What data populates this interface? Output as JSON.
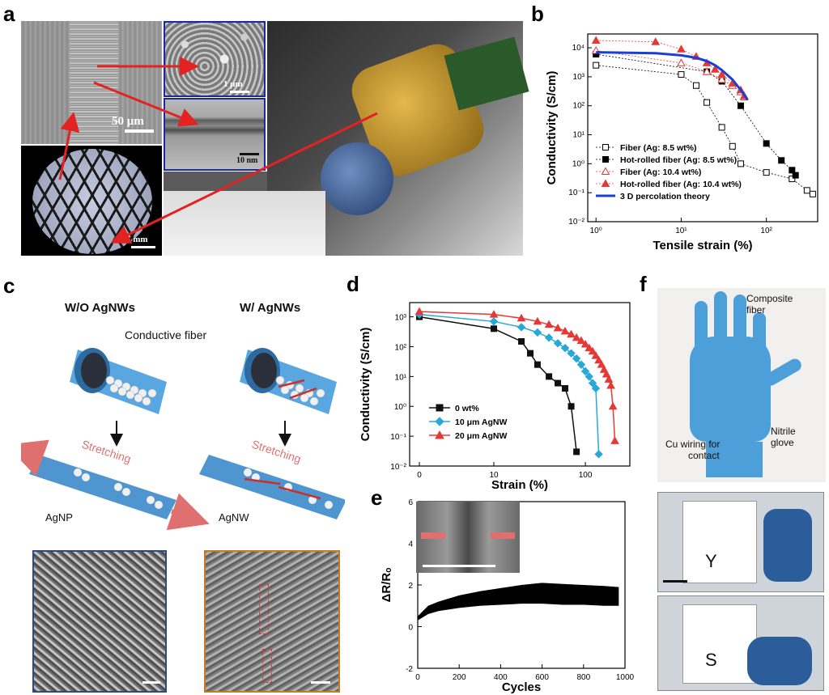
{
  "panels": {
    "a": {
      "letter": "a",
      "scale_main": "50 μm",
      "scale_topright": "1 μm",
      "scale_midright": "10 nm",
      "scale_bottom": "1 mm"
    },
    "b": {
      "letter": "b"
    },
    "c": {
      "letter": "c",
      "left_title": "W/O AgNWs",
      "right_title": "W/ AgNWs",
      "conductive_fiber": "Conductive fiber",
      "stretching_left": "Stretching",
      "stretching_right": "Stretching",
      "agnp": "AgNP",
      "agnw": "AgNW"
    },
    "d": {
      "letter": "d"
    },
    "e": {
      "letter": "e"
    },
    "f": {
      "letter": "f",
      "composite_fiber_line1": "Composite",
      "composite_fiber_line2": "fiber",
      "cu_wiring_line1": "Cu wiring for",
      "cu_wiring_line2": "contact",
      "nitrile_line1": "Nitrile",
      "nitrile_line2": "glove",
      "letter_y": "Y",
      "letter_s": "S"
    }
  },
  "chart_data": [
    {
      "panel": "b",
      "type": "scatter",
      "xlabel": "Tensile strain (%)",
      "ylabel": "Conductivity (S/cm)",
      "x_scale": "log",
      "y_scale": "log",
      "xlim": [
        0.8,
        400
      ],
      "ylim": [
        0.01,
        30000
      ],
      "x_ticks": [
        {
          "v": 1,
          "l": "10⁰"
        },
        {
          "v": 10,
          "l": "10¹"
        },
        {
          "v": 100,
          "l": "10²"
        }
      ],
      "y_ticks": [
        {
          "v": 0.01,
          "l": "10⁻²"
        },
        {
          "v": 0.1,
          "l": "10⁻¹"
        },
        {
          "v": 1,
          "l": "10⁰"
        },
        {
          "v": 10,
          "l": "10¹"
        },
        {
          "v": 100,
          "l": "10²"
        },
        {
          "v": 1000,
          "l": "10³"
        },
        {
          "v": 10000,
          "l": "10⁴"
        }
      ],
      "legend_position": "bottom-left",
      "series": [
        {
          "name": "Fiber (Ag: 8.5 wt%)",
          "marker": "square-open",
          "color": "#000000",
          "x": [
            1,
            10,
            15,
            20,
            30,
            40,
            50,
            100,
            200,
            300,
            350
          ],
          "y": [
            2500,
            1200,
            500,
            130,
            18,
            4,
            1,
            0.5,
            0.3,
            0.12,
            0.09
          ]
        },
        {
          "name": "Hot-rolled fiber (Ag: 8.5 wt%)",
          "marker": "square-filled",
          "color": "#000000",
          "x": [
            1,
            20,
            30,
            50,
            100,
            150,
            200,
            220
          ],
          "y": [
            6000,
            1500,
            700,
            100,
            5,
            1.3,
            0.6,
            0.4
          ]
        },
        {
          "name": "Fiber (Ag: 10.4 wt%)",
          "marker": "triangle-open",
          "color": "#e53935",
          "x": [
            1,
            10,
            20,
            30,
            40,
            50,
            55
          ],
          "y": [
            8000,
            3000,
            1500,
            800,
            500,
            300,
            200
          ]
        },
        {
          "name": "Hot-rolled fiber (Ag: 10.4 wt%)",
          "marker": "triangle-filled",
          "color": "#e53935",
          "x": [
            1,
            5,
            10,
            15,
            20,
            25,
            30,
            40,
            50,
            55
          ],
          "y": [
            18000,
            16000,
            9000,
            5000,
            3000,
            1800,
            1200,
            600,
            350,
            220
          ]
        },
        {
          "name": "3 D percolation theory",
          "marker": "line",
          "color": "#1a3fd6",
          "x": [
            1,
            5,
            10,
            15,
            20,
            25,
            30,
            40,
            50,
            60
          ],
          "y": [
            7000,
            6500,
            5500,
            4500,
            3500,
            2500,
            1700,
            800,
            350,
            160
          ]
        }
      ]
    },
    {
      "panel": "d",
      "type": "line",
      "xlabel": "Strain (%)",
      "ylabel": "Conductivity (S/cm)",
      "x_scale": "log-with-zero",
      "y_scale": "log",
      "ylim": [
        0.01,
        3000
      ],
      "x_ticks": [
        {
          "v": 0,
          "l": "0"
        },
        {
          "v": 10,
          "l": "10"
        },
        {
          "v": 100,
          "l": "100"
        }
      ],
      "y_ticks": [
        {
          "v": 0.01,
          "l": "10⁻²"
        },
        {
          "v": 0.1,
          "l": "10⁻¹"
        },
        {
          "v": 1,
          "l": "10⁰"
        },
        {
          "v": 10,
          "l": "10¹"
        },
        {
          "v": 100,
          "l": "10²"
        },
        {
          "v": 1000,
          "l": "10³"
        }
      ],
      "legend_position": "bottom-left",
      "series": [
        {
          "name": "0 wt%",
          "marker": "square",
          "color": "#111111",
          "x": [
            0,
            10,
            20,
            25,
            30,
            40,
            50,
            60,
            70,
            80
          ],
          "y": [
            1000,
            400,
            150,
            60,
            25,
            10,
            6,
            4,
            1,
            0.03
          ]
        },
        {
          "name": "10 μm AgNW",
          "marker": "diamond",
          "color": "#29a8d8",
          "x": [
            0,
            10,
            20,
            30,
            40,
            50,
            60,
            70,
            80,
            90,
            100,
            110,
            120,
            130,
            140
          ],
          "y": [
            1200,
            700,
            450,
            300,
            200,
            130,
            90,
            60,
            40,
            25,
            15,
            10,
            6,
            4,
            0.025
          ]
        },
        {
          "name": "20 μm AgNW",
          "marker": "triangle",
          "color": "#e53935",
          "x": [
            0,
            10,
            20,
            30,
            40,
            50,
            60,
            70,
            80,
            90,
            100,
            110,
            120,
            130,
            140,
            150,
            160,
            170,
            180,
            190,
            200,
            210
          ],
          "y": [
            1500,
            1200,
            900,
            700,
            550,
            420,
            330,
            260,
            200,
            160,
            120,
            90,
            70,
            50,
            35,
            25,
            17,
            12,
            8,
            5,
            1,
            0.07
          ]
        }
      ]
    },
    {
      "panel": "e",
      "type": "area",
      "xlabel": "Cycles",
      "ylabel": "ΔR/Rₒ",
      "xlim": [
        0,
        1000
      ],
      "ylim": [
        -2,
        6
      ],
      "x_ticks": [
        0,
        200,
        400,
        600,
        800,
        1000
      ],
      "y_ticks": [
        -2,
        0,
        2,
        4,
        6
      ],
      "series": [
        {
          "name": "",
          "color": "#000000",
          "x": [
            0,
            50,
            100,
            200,
            300,
            400,
            500,
            600,
            700,
            800,
            900,
            970
          ],
          "y_low": [
            0.3,
            0.6,
            0.75,
            0.9,
            1.0,
            1.05,
            1.1,
            1.1,
            1.05,
            1.05,
            1.0,
            1.0
          ],
          "y_high": [
            0.5,
            1.0,
            1.2,
            1.5,
            1.7,
            1.85,
            2.0,
            2.1,
            2.05,
            2.0,
            1.95,
            1.9
          ]
        }
      ]
    }
  ]
}
